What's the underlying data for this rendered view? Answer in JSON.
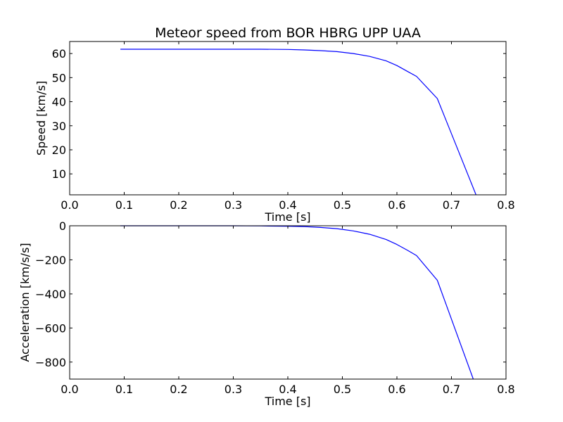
{
  "colors": {
    "line": "#0000ff",
    "axes": "#000000",
    "background": "#ffffff"
  },
  "chart_data": [
    {
      "type": "line",
      "title": "Meteor speed from  BOR HBRG UPP UAA",
      "xlabel": "Time [s]",
      "ylabel": "Speed [km/s]",
      "xlim": [
        0.0,
        0.8
      ],
      "ylim": [
        1.3,
        65
      ],
      "xticks": [
        0.0,
        0.1,
        0.2,
        0.3,
        0.4,
        0.5,
        0.6,
        0.7,
        0.8
      ],
      "xtick_labels": [
        "0.0",
        "0.1",
        "0.2",
        "0.3",
        "0.4",
        "0.5",
        "0.6",
        "0.7",
        "0.8"
      ],
      "yticks": [
        10,
        20,
        30,
        40,
        50,
        60
      ],
      "ytick_labels": [
        "10",
        "20",
        "30",
        "40",
        "50",
        "60"
      ],
      "grid": false,
      "series": [
        {
          "color": "#0000ff",
          "x": [
            0.093,
            0.2,
            0.3,
            0.35,
            0.4,
            0.43,
            0.46,
            0.49,
            0.52,
            0.55,
            0.58,
            0.6,
            0.62,
            0.636,
            0.674,
            0.745
          ],
          "y": [
            61.8,
            61.8,
            61.8,
            61.8,
            61.7,
            61.5,
            61.2,
            60.8,
            60.0,
            58.8,
            57.0,
            55.0,
            52.5,
            50.5,
            41.3,
            1.3
          ]
        }
      ]
    },
    {
      "type": "line",
      "title": "",
      "xlabel": "Time [s]",
      "ylabel": "Acceleration [km/s/s]",
      "xlim": [
        0.0,
        0.8
      ],
      "ylim": [
        -900,
        0
      ],
      "xticks": [
        0.0,
        0.1,
        0.2,
        0.3,
        0.4,
        0.5,
        0.6,
        0.7,
        0.8
      ],
      "xtick_labels": [
        "0.0",
        "0.1",
        "0.2",
        "0.3",
        "0.4",
        "0.5",
        "0.6",
        "0.7",
        "0.8"
      ],
      "yticks": [
        0,
        -200,
        -400,
        -600,
        -800
      ],
      "ytick_labels": [
        "0",
        "−200",
        "−400",
        "−600",
        "−800"
      ],
      "grid": false,
      "series": [
        {
          "color": "#0000ff",
          "x": [
            0.093,
            0.2,
            0.3,
            0.35,
            0.4,
            0.43,
            0.46,
            0.49,
            0.52,
            0.55,
            0.58,
            0.6,
            0.62,
            0.636,
            0.674,
            0.74
          ],
          "y": [
            0,
            0,
            0,
            -1,
            -3,
            -5,
            -10,
            -17,
            -30,
            -50,
            -80,
            -110,
            -145,
            -175,
            -320,
            -900
          ]
        }
      ]
    }
  ]
}
